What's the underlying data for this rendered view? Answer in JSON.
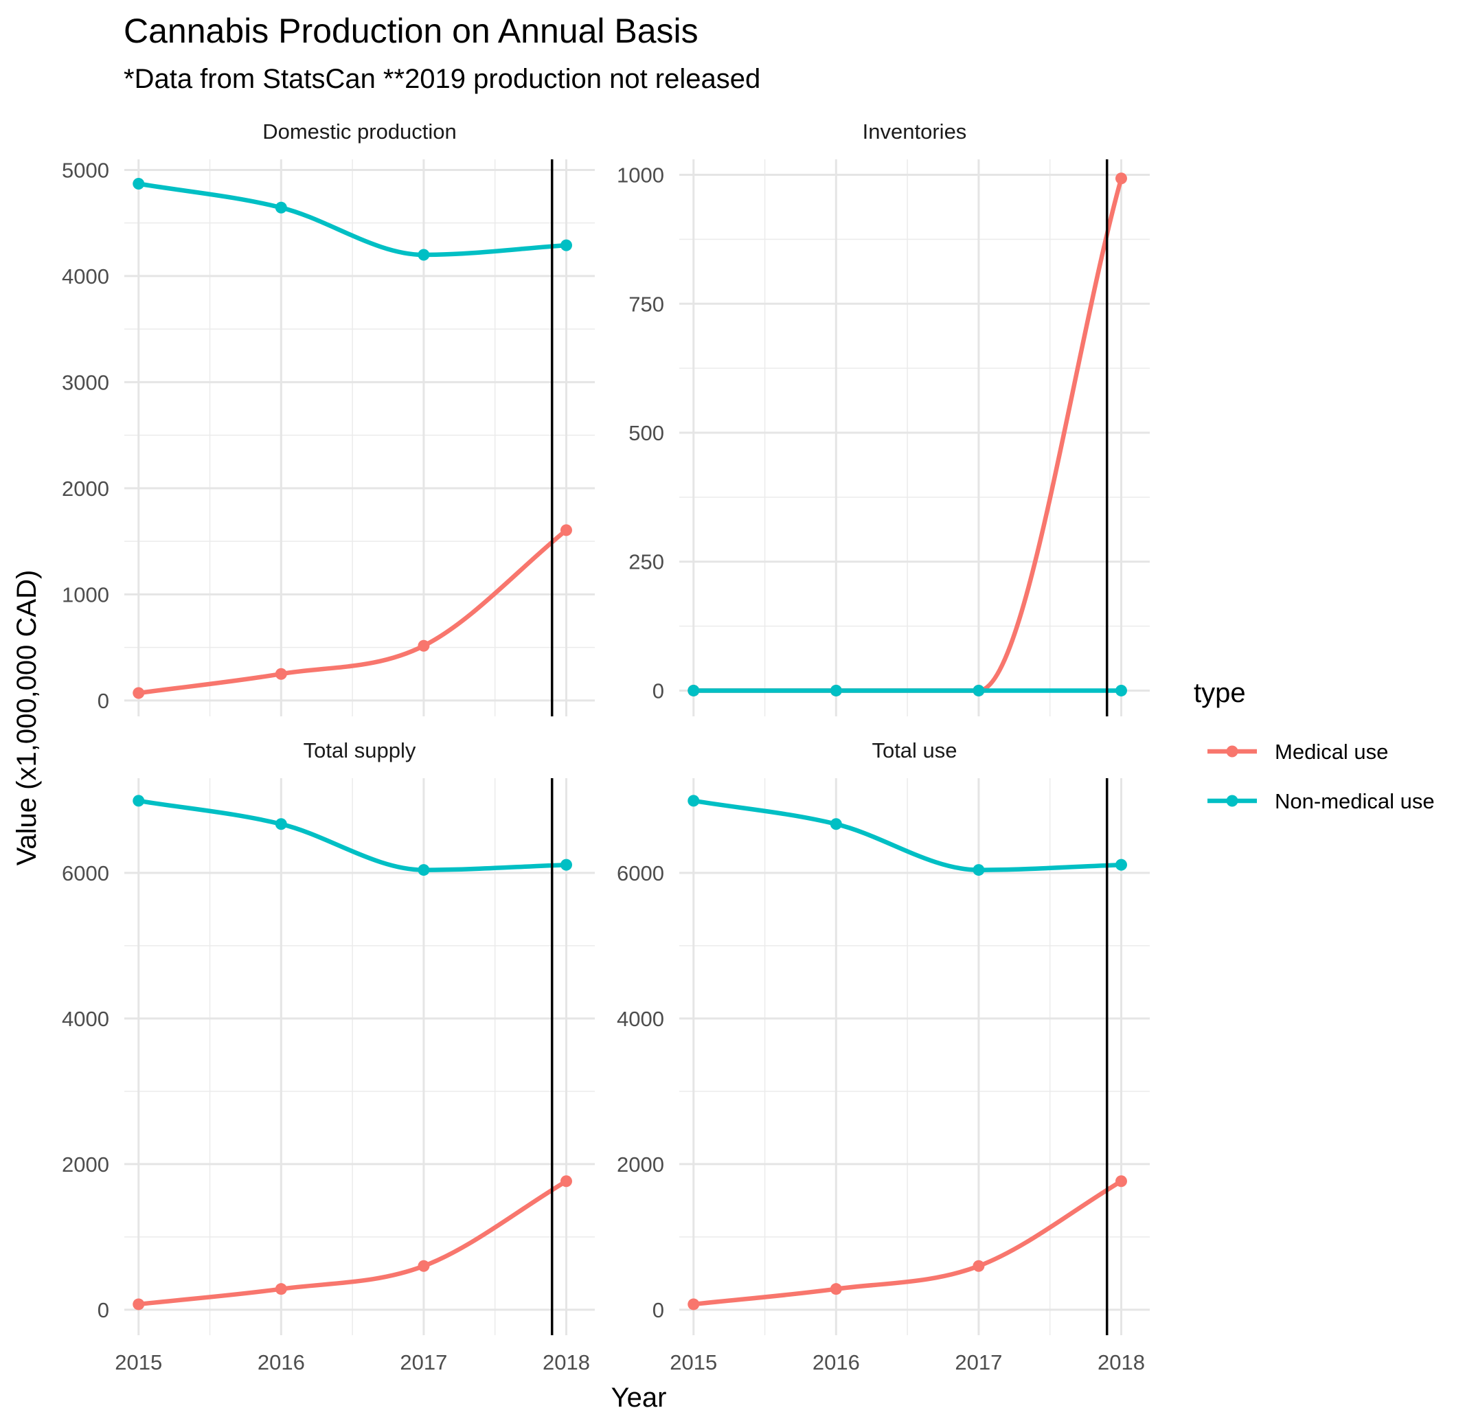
{
  "chart_data": {
    "type": "line",
    "title": "Cannabis Production on Annual Basis",
    "subtitle": "*Data from StatsCan **2019 production not released",
    "xlabel": "Year",
    "ylabel": "Value (x1,000,000 CAD)",
    "x": [
      2015,
      2016,
      2017,
      2018
    ],
    "x_tick_labels": [
      "2015",
      "2016",
      "2017",
      "2018"
    ],
    "xlim": [
      2014.9,
      2018.2
    ],
    "vline_x": 2017.9,
    "grid": true,
    "smoothed": true,
    "legend": {
      "title": "type",
      "position": "right",
      "entries": [
        {
          "label": "Medical use",
          "color": "#F8766D"
        },
        {
          "label": "Non-medical use",
          "color": "#00BFC4"
        }
      ]
    },
    "panels": [
      {
        "name": "Domestic production",
        "ylim": [
          -150,
          5100
        ],
        "y_ticks": [
          0,
          1000,
          2000,
          3000,
          4000,
          5000
        ],
        "y_tick_labels": [
          "0",
          "1000",
          "2000",
          "3000",
          "4000",
          "5000"
        ],
        "series": [
          {
            "name": "Medical use",
            "values": [
              70,
              250,
              515,
              1605
            ]
          },
          {
            "name": "Non-medical use",
            "values": [
              4870,
              4645,
              4200,
              4290
            ]
          }
        ]
      },
      {
        "name": "Inventories",
        "ylim": [
          -50,
          1030
        ],
        "y_ticks": [
          0,
          250,
          500,
          750,
          1000
        ],
        "y_tick_labels": [
          "0",
          "250",
          "500",
          "750",
          "1000"
        ],
        "series": [
          {
            "name": "Medical use",
            "values": [
              0,
              0,
              0,
              993
            ]
          },
          {
            "name": "Non-medical use",
            "values": [
              0,
              0,
              0,
              0
            ]
          }
        ]
      },
      {
        "name": "Total supply",
        "ylim": [
          -350,
          7300
        ],
        "y_ticks": [
          0,
          2000,
          4000,
          6000
        ],
        "y_tick_labels": [
          "0",
          "2000",
          "4000",
          "6000"
        ],
        "series": [
          {
            "name": "Medical use",
            "values": [
              75,
              285,
              600,
              1765
            ]
          },
          {
            "name": "Non-medical use",
            "values": [
              6990,
              6670,
              6040,
              6110
            ]
          }
        ]
      },
      {
        "name": "Total use",
        "ylim": [
          -350,
          7300
        ],
        "y_ticks": [
          0,
          2000,
          4000,
          6000
        ],
        "y_tick_labels": [
          "0",
          "2000",
          "4000",
          "6000"
        ],
        "series": [
          {
            "name": "Medical use",
            "values": [
              75,
              285,
              600,
              1765
            ]
          },
          {
            "name": "Non-medical use",
            "values": [
              6990,
              6670,
              6040,
              6110
            ]
          }
        ]
      }
    ]
  }
}
